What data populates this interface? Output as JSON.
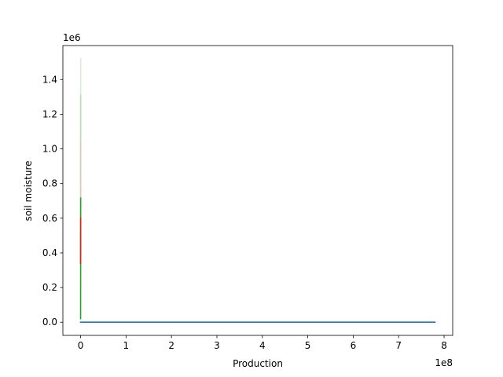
{
  "chart_data": {
    "type": "line",
    "title": "",
    "xlabel": "Production",
    "ylabel": "soil moisture",
    "x_offset_label": "1e8",
    "y_offset_label": "1e6",
    "x_scale_multiplier": 100000000,
    "y_scale_multiplier": 1000000,
    "xlim": [
      -0.39,
      8.19
    ],
    "ylim": [
      -0.076,
      1.596
    ],
    "xticks": [
      0,
      1,
      2,
      3,
      4,
      5,
      6,
      7,
      8
    ],
    "xtick_labels": [
      "0",
      "1",
      "2",
      "3",
      "4",
      "5",
      "6",
      "7",
      "8"
    ],
    "yticks": [
      0.0,
      0.2,
      0.4,
      0.6,
      0.8,
      1.0,
      1.2,
      1.4
    ],
    "ytick_labels": [
      "0.0",
      "0.2",
      "0.4",
      "0.6",
      "0.8",
      "1.0",
      "1.2",
      "1.4"
    ],
    "grid": false,
    "legend": false,
    "series": [
      {
        "color": "#d6ecd6",
        "x": [
          0.0,
          0.002
        ],
        "y": [
          0.82,
          1.52
        ]
      },
      {
        "color": "#b8dcb8",
        "x": [
          0.0,
          0.002
        ],
        "y": [
          0.45,
          1.31
        ]
      },
      {
        "color": "#e0c8b8",
        "x": [
          0.0,
          0.002
        ],
        "y": [
          0.36,
          1.04
        ]
      },
      {
        "color": "#2ca02c",
        "x": [
          0.0,
          0.002,
          0.0
        ],
        "y": [
          0.02,
          0.72,
          0.33
        ]
      },
      {
        "color": "#d62728",
        "x": [
          0.0,
          0.002
        ],
        "y": [
          0.34,
          0.6
        ]
      },
      {
        "color": "#1f77b4",
        "x": [
          0.0,
          7.8
        ],
        "y": [
          0.0,
          0.0
        ]
      }
    ]
  }
}
